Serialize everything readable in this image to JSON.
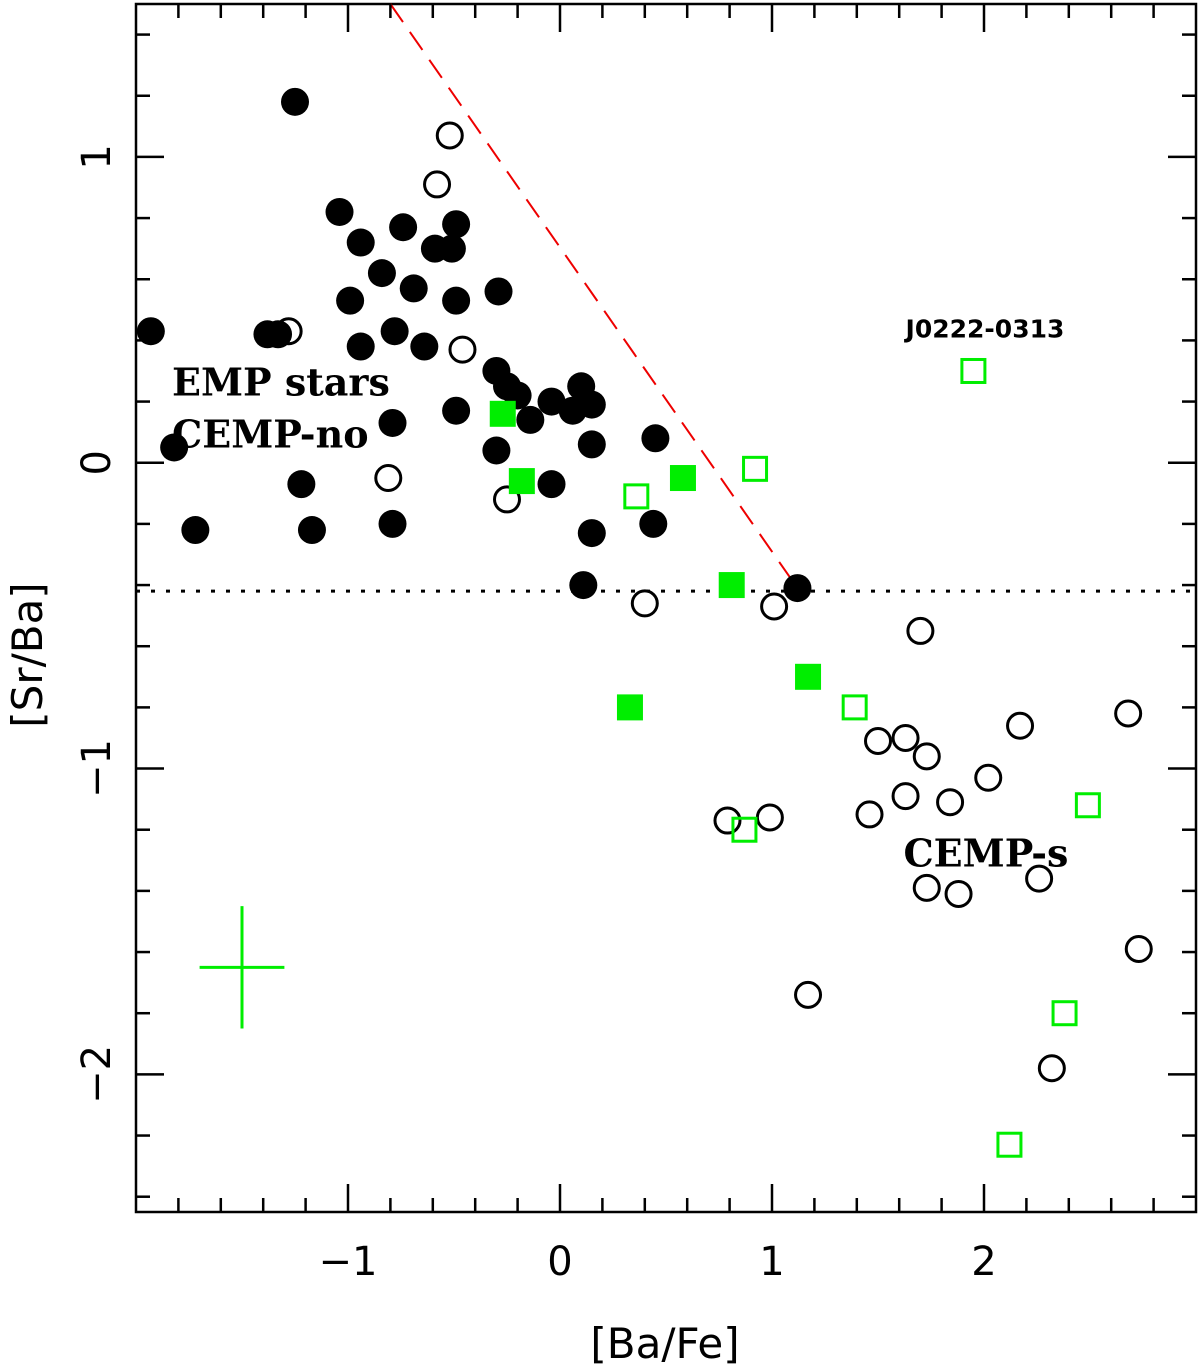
{
  "chart_data": {
    "type": "scatter",
    "xlabel": "[Ba/Fe]",
    "ylabel": "[Sr/Ba]",
    "xlim": [
      -2.0,
      3.0
    ],
    "ylim": [
      -2.45,
      1.5
    ],
    "x_ticks": [
      -1,
      0,
      1,
      2
    ],
    "y_ticks": [
      -2,
      -1,
      0,
      1
    ],
    "x_tick_labels": [
      "−1",
      "0",
      "1",
      "2"
    ],
    "y_tick_labels": [
      "−2",
      "−1",
      "0",
      "1"
    ],
    "grid": false,
    "colors": {
      "black": "#000000",
      "green": "#00ee00",
      "red": "#ee0000"
    },
    "series": [
      {
        "marker": "filled-circle",
        "points": [
          [
            -1.93,
            0.43
          ],
          [
            -1.82,
            0.05
          ],
          [
            -1.72,
            -0.22
          ],
          [
            -1.38,
            0.42
          ],
          [
            -1.33,
            0.42
          ],
          [
            -1.25,
            1.18
          ],
          [
            -1.22,
            -0.07
          ],
          [
            -1.17,
            -0.22
          ],
          [
            -1.04,
            0.82
          ],
          [
            -0.99,
            0.53
          ],
          [
            -0.94,
            0.72
          ],
          [
            -0.94,
            0.38
          ],
          [
            -0.84,
            0.62
          ],
          [
            -0.79,
            0.13
          ],
          [
            -0.79,
            -0.2
          ],
          [
            -0.74,
            0.77
          ],
          [
            -0.69,
            0.57
          ],
          [
            -0.64,
            0.38
          ],
          [
            -0.59,
            0.7
          ],
          [
            -0.51,
            0.7
          ],
          [
            -0.49,
            0.78
          ],
          [
            -0.49,
            0.53
          ],
          [
            -0.49,
            0.17
          ],
          [
            -0.29,
            0.56
          ],
          [
            -0.3,
            0.3
          ],
          [
            -0.3,
            0.04
          ],
          [
            -0.25,
            0.25
          ],
          [
            -0.2,
            0.22
          ],
          [
            -0.14,
            0.14
          ],
          [
            -0.04,
            0.2
          ],
          [
            -0.04,
            -0.07
          ],
          [
            0.06,
            0.17
          ],
          [
            0.1,
            0.25
          ],
          [
            0.11,
            -0.4
          ],
          [
            0.15,
            0.19
          ],
          [
            0.15,
            0.06
          ],
          [
            0.15,
            -0.23
          ],
          [
            0.45,
            0.08
          ],
          [
            0.44,
            -0.2
          ],
          [
            1.12,
            -0.41
          ],
          [
            -0.78,
            0.43
          ]
        ]
      },
      {
        "marker": "open-circle",
        "points": [
          [
            -0.52,
            1.07
          ],
          [
            -0.58,
            0.91
          ],
          [
            -1.28,
            0.43
          ],
          [
            -0.46,
            0.37
          ],
          [
            -0.81,
            -0.05
          ],
          [
            -0.25,
            -0.12
          ],
          [
            0.4,
            -0.46
          ],
          [
            1.01,
            -0.47
          ],
          [
            1.7,
            -0.55
          ],
          [
            2.68,
            -0.82
          ],
          [
            2.17,
            -0.86
          ],
          [
            1.5,
            -0.91
          ],
          [
            1.63,
            -0.9
          ],
          [
            1.73,
            -0.96
          ],
          [
            2.02,
            -1.03
          ],
          [
            1.63,
            -1.09
          ],
          [
            1.84,
            -1.11
          ],
          [
            1.46,
            -1.15
          ],
          [
            0.79,
            -1.17
          ],
          [
            0.99,
            -1.16
          ],
          [
            2.26,
            -1.36
          ],
          [
            1.73,
            -1.39
          ],
          [
            1.88,
            -1.41
          ],
          [
            2.73,
            -1.59
          ],
          [
            1.17,
            -1.74
          ],
          [
            2.32,
            -1.98
          ]
        ]
      },
      {
        "marker": "filled-square",
        "points": [
          [
            -0.27,
            0.16
          ],
          [
            -0.18,
            -0.06
          ],
          [
            0.58,
            -0.05
          ],
          [
            0.81,
            -0.4
          ],
          [
            1.17,
            -0.7
          ],
          [
            0.33,
            -0.8
          ]
        ]
      },
      {
        "marker": "open-square",
        "points": [
          [
            0.92,
            -0.02
          ],
          [
            0.36,
            -0.11
          ],
          [
            1.39,
            -0.8
          ],
          [
            0.87,
            -1.2
          ],
          [
            2.49,
            -1.12
          ],
          [
            1.95,
            0.3
          ],
          [
            2.38,
            -1.8
          ],
          [
            2.12,
            -2.23
          ]
        ]
      }
    ],
    "reference_lines": [
      {
        "style": "dashed",
        "color": "red",
        "from": [
          -0.8,
          1.5
        ],
        "to": [
          1.1,
          -0.39
        ]
      },
      {
        "style": "dotted",
        "color": "black",
        "y": -0.42
      }
    ],
    "error_bar": {
      "x": -1.5,
      "y": -1.65,
      "x_err": 0.2,
      "y_err": 0.2,
      "color": "green"
    },
    "annotations": [
      {
        "text": "EMP stars",
        "x": -1.83,
        "y": 0.22
      },
      {
        "text": "CEMP-no",
        "x": -1.83,
        "y": 0.05
      },
      {
        "text": "CEMP-s",
        "x": 1.62,
        "y": -1.32
      },
      {
        "text": "J0222-0313",
        "x": 1.63,
        "y": 0.41
      }
    ]
  }
}
